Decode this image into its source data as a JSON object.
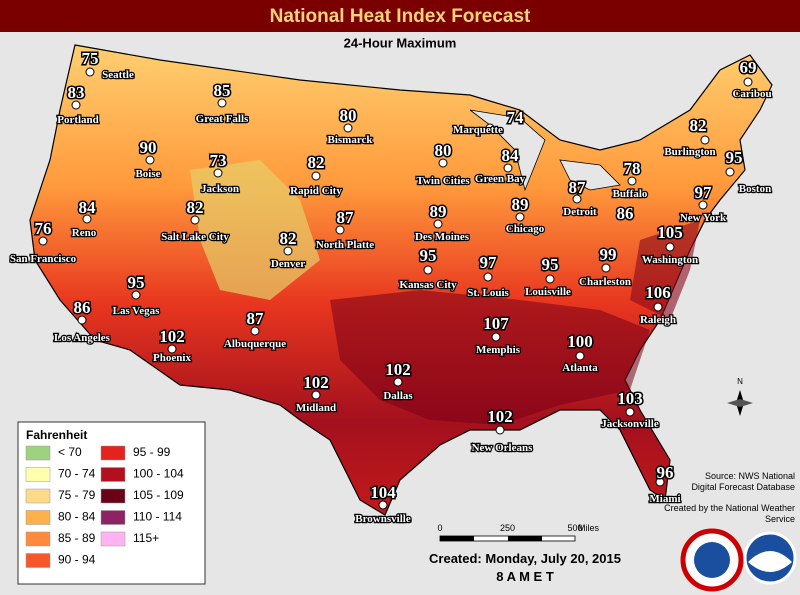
{
  "header": {
    "title": "National Heat Index Forecast",
    "subtitle": "24-Hour Maximum"
  },
  "cities": [
    {
      "name": "Seattle",
      "value": 75
    },
    {
      "name": "Portland",
      "value": 83
    },
    {
      "name": "Boise",
      "value": 90
    },
    {
      "name": "Great Falls",
      "value": 85
    },
    {
      "name": "Jackson",
      "value": 73
    },
    {
      "name": "Bismarck",
      "value": 80
    },
    {
      "name": "Marquette",
      "value": 74
    },
    {
      "name": "Caribou",
      "value": 69
    },
    {
      "name": "Burlington",
      "value": 82
    },
    {
      "name": "Boston",
      "value": 95
    },
    {
      "name": "Twin Cities",
      "value": 80
    },
    {
      "name": "Green Bay",
      "value": 84
    },
    {
      "name": "Rapid City",
      "value": 82
    },
    {
      "name": "Reno",
      "value": 84
    },
    {
      "name": "Salt Lake City",
      "value": 82
    },
    {
      "name": "Detroit",
      "value": 87
    },
    {
      "name": "Buffalo",
      "value": 78
    },
    {
      "name": "New York",
      "value": 97
    },
    {
      "name": "North Platte",
      "value": 87
    },
    {
      "name": "Des Moines",
      "value": 89
    },
    {
      "name": "Chicago",
      "value": 89
    },
    {
      "value": 86
    },
    {
      "name": "San Francisco",
      "value": 76
    },
    {
      "name": "Denver",
      "value": 82
    },
    {
      "name": "Washington",
      "value": 105
    },
    {
      "name": "Charleston",
      "value": 99
    },
    {
      "name": "Kansas City",
      "value": 95
    },
    {
      "name": "St. Louis",
      "value": 97
    },
    {
      "name": "Louisville",
      "value": 95
    },
    {
      "name": "Las Vegas",
      "value": 95
    },
    {
      "name": "Raleigh",
      "value": 106
    },
    {
      "name": "Los Angeles",
      "value": 86
    },
    {
      "name": "Phoenix",
      "value": 102
    },
    {
      "name": "Albuquerque",
      "value": 87
    },
    {
      "name": "Memphis",
      "value": 107
    },
    {
      "name": "Atlanta",
      "value": 100
    },
    {
      "name": "Midland",
      "value": 102
    },
    {
      "name": "Dallas",
      "value": 102
    },
    {
      "name": "Jacksonville",
      "value": 103
    },
    {
      "name": "New Orleans",
      "value": 102
    },
    {
      "name": "Miami",
      "value": 96
    },
    {
      "name": "Brownsville",
      "value": 104
    }
  ],
  "legend": {
    "title": "Fahrenheit",
    "items": [
      {
        "label": "< 70",
        "color": "#9fd27f"
      },
      {
        "label": "70 - 74",
        "color": "#ffffb0"
      },
      {
        "label": "75 - 79",
        "color": "#ffd98a"
      },
      {
        "label": "80 - 84",
        "color": "#ffb04a"
      },
      {
        "label": "85 - 89",
        "color": "#ff8a3d"
      },
      {
        "label": "90 - 94",
        "color": "#f5562a"
      },
      {
        "label": "95 - 99",
        "color": "#e3231d"
      },
      {
        "label": "100 - 104",
        "color": "#b3101f"
      },
      {
        "label": "105 - 109",
        "color": "#6c0019"
      },
      {
        "label": "110 - 114",
        "color": "#8c2463"
      },
      {
        "label": "115+",
        "color": "#ffb3f0"
      }
    ]
  },
  "scale": {
    "ticks": [
      "0",
      "250",
      "500"
    ],
    "unit": "Miles"
  },
  "north": "N",
  "source": "Source: NWS National Digital Forecast Database",
  "credit": "Created by the National Weather Service",
  "created": "Created: Monday, July 20, 2015",
  "time": "8 A M E T"
}
